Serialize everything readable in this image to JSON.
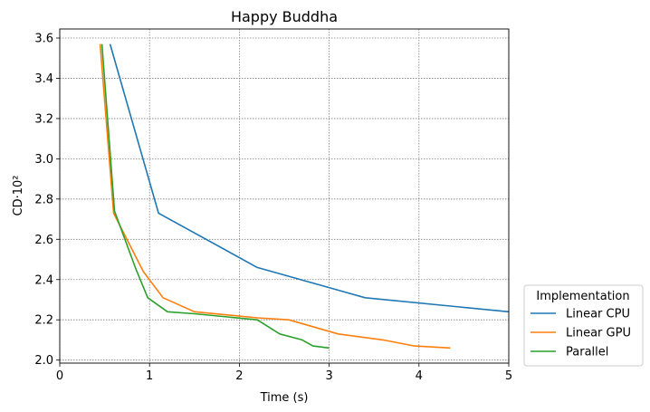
{
  "chart_data": {
    "type": "line",
    "title": "Happy Buddha",
    "xlabel": "Time (s)",
    "ylabel": "CD·10²",
    "xlim": [
      0,
      5
    ],
    "ylim": [
      1.985,
      3.645
    ],
    "xticks": [
      "0",
      "1",
      "2",
      "3",
      "4",
      "5"
    ],
    "yticks": [
      "2.0",
      "2.2",
      "2.4",
      "2.6",
      "2.8",
      "3.0",
      "3.2",
      "3.4",
      "3.6"
    ],
    "grid": true,
    "legend": {
      "title": "Implementation",
      "placement": "outside-bottom-right"
    },
    "series": [
      {
        "name": "Linear CPU",
        "color": "#1f77b4",
        "x": [
          0.56,
          1.1,
          2.2,
          3.4,
          5.0
        ],
        "y": [
          3.57,
          2.73,
          2.46,
          2.31,
          2.24
        ]
      },
      {
        "name": "Linear GPU",
        "color": "#ff7f0e",
        "x": [
          0.45,
          0.6,
          0.93,
          1.15,
          1.5,
          2.2,
          2.55,
          3.1,
          3.6,
          3.95,
          4.35
        ],
        "y": [
          3.57,
          2.73,
          2.44,
          2.31,
          2.24,
          2.21,
          2.2,
          2.13,
          2.1,
          2.07,
          2.06
        ]
      },
      {
        "name": "Parallel",
        "color": "#2ca02c",
        "x": [
          0.47,
          0.61,
          0.85,
          0.98,
          1.2,
          1.5,
          2.2,
          2.45,
          2.7,
          2.82,
          3.0
        ],
        "y": [
          3.57,
          2.74,
          2.45,
          2.31,
          2.24,
          2.23,
          2.2,
          2.13,
          2.1,
          2.07,
          2.06
        ]
      }
    ]
  }
}
